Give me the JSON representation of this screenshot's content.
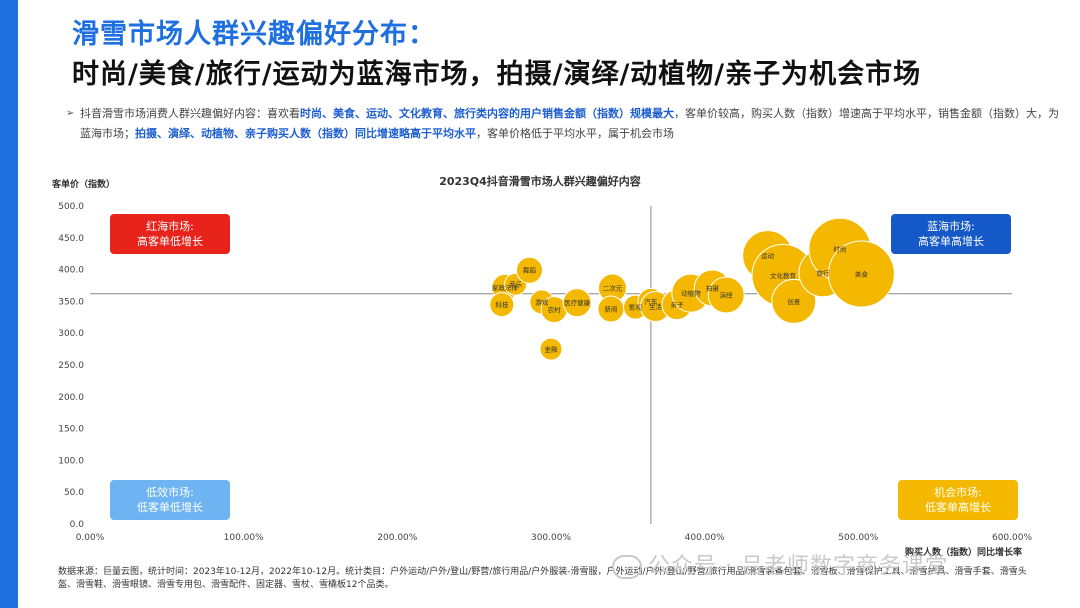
{
  "header": {
    "title_line1": "滑雪市场人群兴趣偏好分布：",
    "title_line2": "时尚/美食/旅行/运动为蓝海市场，拍摄/演绎/动植物/亲子为机会市场"
  },
  "summary": {
    "arrow": "➢",
    "seg1": "抖音滑雪市场消费人群兴趣偏好内容：喜欢看",
    "seg2_hl": "时尚、美食、运动、文化教育、旅行类内容的用户销售金额（指数）规模最大",
    "seg3": "，客单价较高，购买人数（指数）增速高于平均水平，销售金额（指数）大，为蓝海市场；",
    "seg4_hl": "拍摄、演绎、动植物、亲子购买人数（指数）同比增速略高于平均水平",
    "seg5": "，客单价格低于平均水平，属于机会市场"
  },
  "quadrants": {
    "red": {
      "line1": "红海市场:",
      "line2": "高客单低增长",
      "color": "#e8231c"
    },
    "blue": {
      "line1": "蓝海市场:",
      "line2": "高客单高增长",
      "color": "#1558c8"
    },
    "low": {
      "line1": "低效市场:",
      "line2": "低客单低增长",
      "color": "#6eb4f2"
    },
    "chance": {
      "line1": "机会市场:",
      "line2": "低客单高增长",
      "color": "#f5b800"
    }
  },
  "chart_data": {
    "type": "scatter",
    "title": "2023Q4抖音滑雪市场人群兴趣偏好内容",
    "ylabel": "客单价（指数）",
    "xlabel": "购买人数（指数）同比增长率",
    "xlim": [
      0,
      600
    ],
    "ylim": [
      0,
      500
    ],
    "x_ticks": [
      "0.00%",
      "100.00%",
      "200.00%",
      "300.00%",
      "400.00%",
      "500.00%",
      "600.00%"
    ],
    "y_ticks": [
      "0.0",
      "50.0",
      "100.0",
      "150.0",
      "200.0",
      "250.0",
      "300.0",
      "350.0",
      "400.0",
      "450.0",
      "500.0"
    ],
    "avg_x": 365,
    "avg_y": 362,
    "bubble_color": "#f5b800",
    "points": [
      {
        "label": "家政法律",
        "x": 270,
        "y": 372,
        "size": 13
      },
      {
        "label": "音乐",
        "x": 277,
        "y": 377,
        "size": 11
      },
      {
        "label": "舞蹈",
        "x": 286,
        "y": 399,
        "size": 13
      },
      {
        "label": "科技",
        "x": 268,
        "y": 345,
        "size": 12
      },
      {
        "label": "游戏",
        "x": 294,
        "y": 349,
        "size": 12
      },
      {
        "label": "农村",
        "x": 302,
        "y": 337,
        "size": 13
      },
      {
        "label": "医疗健康",
        "x": 317,
        "y": 348,
        "size": 14
      },
      {
        "label": "金融",
        "x": 300,
        "y": 275,
        "size": 11
      },
      {
        "label": "二次元",
        "x": 340,
        "y": 371,
        "size": 14
      },
      {
        "label": "新闻",
        "x": 339,
        "y": 338,
        "size": 13
      },
      {
        "label": "影视",
        "x": 355,
        "y": 341,
        "size": 12
      },
      {
        "label": "汽车",
        "x": 365,
        "y": 350,
        "size": 13
      },
      {
        "label": "生活",
        "x": 368,
        "y": 342,
        "size": 15
      },
      {
        "label": "亲子",
        "x": 382,
        "y": 345,
        "size": 15
      },
      {
        "label": "动植物",
        "x": 391,
        "y": 363,
        "size": 19
      },
      {
        "label": "拍摄",
        "x": 405,
        "y": 371,
        "size": 18
      },
      {
        "label": "演绎",
        "x": 414,
        "y": 360,
        "size": 18
      },
      {
        "label": "运动",
        "x": 441,
        "y": 422,
        "size": 25
      },
      {
        "label": "文化教育",
        "x": 451,
        "y": 391,
        "size": 31
      },
      {
        "label": "创意",
        "x": 458,
        "y": 350,
        "size": 22
      },
      {
        "label": "旅行",
        "x": 477,
        "y": 395,
        "size": 24
      },
      {
        "label": "时尚",
        "x": 488,
        "y": 432,
        "size": 31
      },
      {
        "label": "美食",
        "x": 502,
        "y": 393,
        "size": 33
      }
    ]
  },
  "footer": {
    "source": "数据来源：巨量云图，统计时间：2023年10-12月，2022年10-12月。统计类目：户外运动/户外/登山/野营/旅行用品/户外服装-滑雪服，户外运动/户外/登山/野营/旅行用品/滑雪装备包套、滑雪板、滑雪保护工具、滑雪护具、滑雪手套、滑雪头盔、滑雪鞋、滑雪眼镜、滑雪专用包、滑雪配件、固定器、雪杖、雪橇板12个品类。"
  },
  "watermark": {
    "text": "公众号 · 吕老师数字商务课堂"
  }
}
